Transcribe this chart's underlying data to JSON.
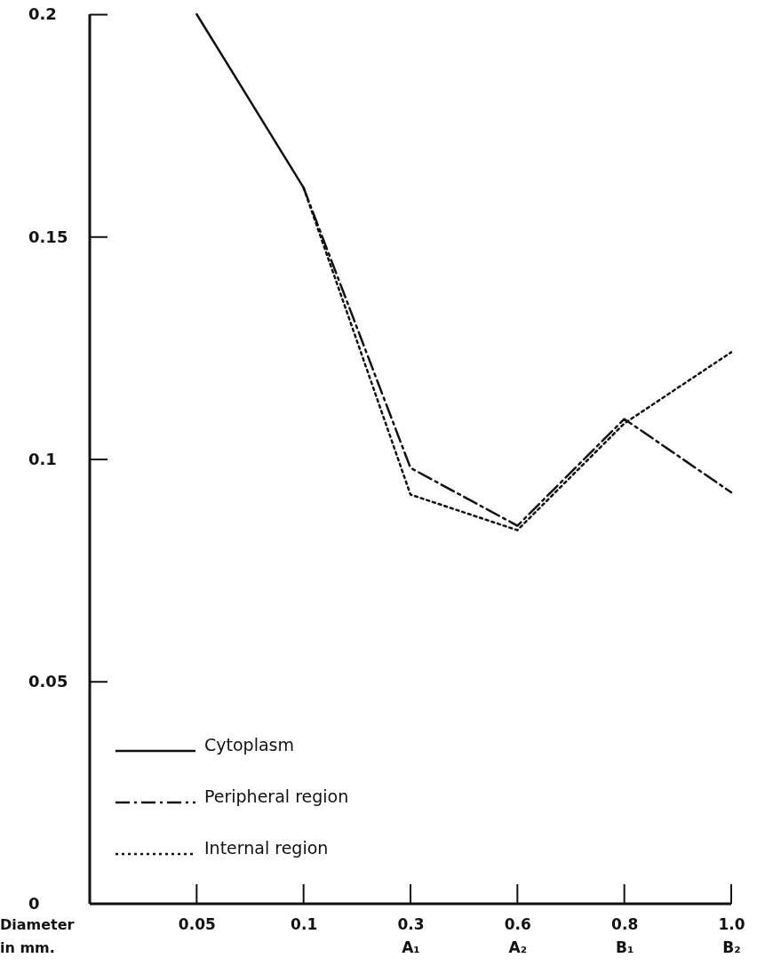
{
  "chart_data": {
    "type": "line",
    "xlabel": "Diameter\nin mm.",
    "categories": [
      "0.05",
      "0.1",
      "0.3\nA₁",
      "0.6\nA₂",
      "0.8\nB₁",
      "1.0\nB₂"
    ],
    "series": [
      {
        "name": "Cytoplasm",
        "color": "#111111",
        "line_style": "solid",
        "values": [
          0.2,
          0.161,
          null,
          null,
          null,
          null
        ]
      },
      {
        "name": "Peripheral region",
        "color": "#111111",
        "line_style": "dashed",
        "values": [
          null,
          0.161,
          0.098,
          0.085,
          0.109,
          0.0925
        ]
      },
      {
        "name": "Internal region",
        "color": "#111111",
        "line_style": "dotted",
        "values": [
          null,
          0.161,
          0.092,
          0.084,
          0.108,
          0.124
        ]
      }
    ],
    "ylim": [
      0,
      0.2
    ],
    "yticks": [
      0,
      0.05,
      {
        "value": 0.1,
        "label": "0.1"
      },
      0.15,
      {
        "value": 0.2,
        "label": "0.2"
      }
    ],
    "grid": false,
    "legend": "bottom left",
    "marker": "none"
  }
}
